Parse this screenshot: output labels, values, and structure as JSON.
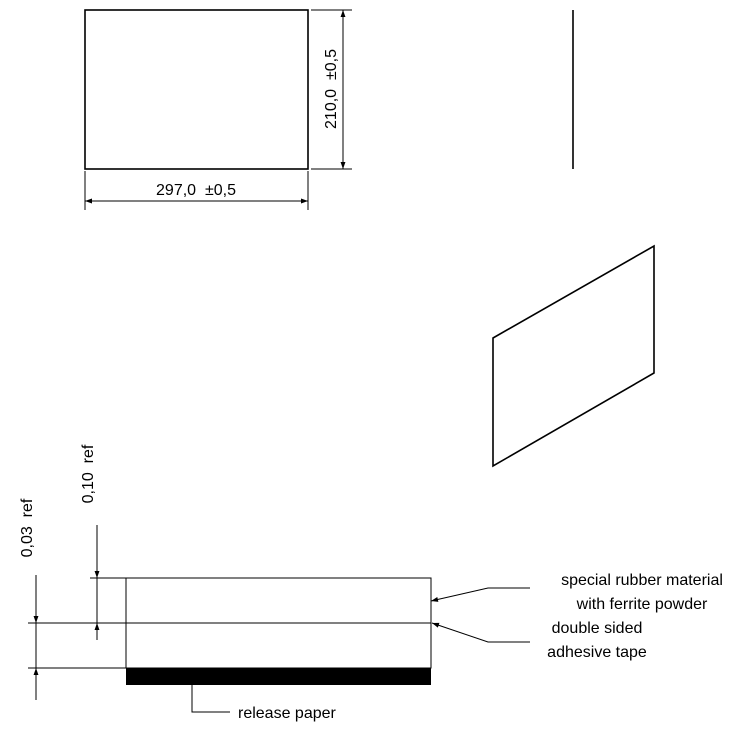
{
  "drawing": {
    "front_view": {
      "width_dim": "297,0  ±0,5",
      "height_dim": "210,0  ±0,5"
    },
    "layer_section": {
      "total_thickness_dim": "0,10  ref",
      "adhesive_thickness_dim": "0,03  ref",
      "callouts": {
        "rubber_line1": "special rubber material",
        "rubber_line2": "with ferrite powder",
        "tape_line1": "double sided",
        "tape_line2": "adhesive tape",
        "release": "release paper"
      }
    },
    "colors": {
      "line": "#000000",
      "background": "#ffffff"
    }
  }
}
